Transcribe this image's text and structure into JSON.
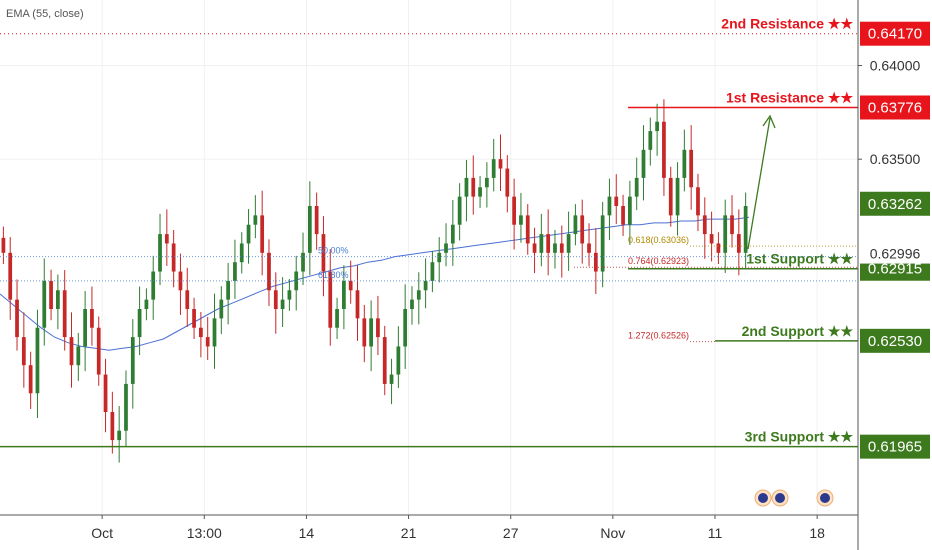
{
  "indicator": {
    "label": "EMA (55, close)"
  },
  "colors": {
    "resistance": "#e8141b",
    "support": "#3d7a1e",
    "candle_up": "#2e7d32",
    "candle_down": "#c62828",
    "ema": "#4a6fd4",
    "fib_blue": "#4a7fd4",
    "fib_gold": "#b08a00",
    "fib_red": "#c62828",
    "arrow": "#3d7a1e",
    "grid": "#f0f0f0"
  },
  "chart_data": {
    "type": "candlestick",
    "ylim": [
      0.616,
      0.6435
    ],
    "x_ticks": [
      {
        "label": "Oct",
        "t": 15
      },
      {
        "label": "13:00",
        "t": 30
      },
      {
        "label": "14",
        "t": 45
      },
      {
        "label": "21",
        "t": 60
      },
      {
        "label": "27",
        "t": 75
      },
      {
        "label": "Nov",
        "t": 90
      },
      {
        "label": "11",
        "t": 105
      },
      {
        "label": "18",
        "t": 120
      }
    ],
    "y_ticks": [
      {
        "label": "0.64000",
        "v": 0.64
      },
      {
        "label": "0.63500",
        "v": 0.635
      }
    ],
    "close_series": [
      0.63,
      0.6275,
      0.6255,
      0.624,
      0.6225,
      0.626,
      0.6285,
      0.627,
      0.628,
      0.6255,
      0.624,
      0.625,
      0.627,
      0.626,
      0.6235,
      0.6215,
      0.62,
      0.6205,
      0.623,
      0.6255,
      0.627,
      0.6275,
      0.629,
      0.631,
      0.6305,
      0.629,
      0.628,
      0.627,
      0.626,
      0.6255,
      0.625,
      0.6265,
      0.6275,
      0.6285,
      0.6295,
      0.6305,
      0.6315,
      0.632,
      0.63,
      0.628,
      0.627,
      0.6275,
      0.628,
      0.629,
      0.63,
      0.6325,
      0.631,
      0.629,
      0.626,
      0.627,
      0.6285,
      0.628,
      0.6265,
      0.625,
      0.6265,
      0.6255,
      0.623,
      0.6235,
      0.625,
      0.627,
      0.6275,
      0.628,
      0.6285,
      0.6295,
      0.63,
      0.6305,
      0.6315,
      0.633,
      0.634,
      0.633,
      0.6335,
      0.634,
      0.635,
      0.6345,
      0.633,
      0.6315,
      0.632,
      0.6305,
      0.63,
      0.631,
      0.63,
      0.6305,
      0.63,
      0.631,
      0.632,
      0.6305,
      0.63,
      0.629,
      0.632,
      0.633,
      0.6325,
      0.6315,
      0.633,
      0.634,
      0.6355,
      0.6365,
      0.637,
      0.634,
      0.632,
      0.634,
      0.6355,
      0.6335,
      0.632,
      0.631,
      0.6305,
      0.63,
      0.632,
      0.631,
      0.63,
      0.6325
    ],
    "ema_series": [
      0.6278,
      0.6272,
      0.6266,
      0.626,
      0.6255,
      0.6252,
      0.625,
      0.6249,
      0.6248,
      0.6249,
      0.625,
      0.6252,
      0.6254,
      0.6258,
      0.6262,
      0.6266,
      0.627,
      0.6273,
      0.6276,
      0.6279,
      0.6282,
      0.6284,
      0.6286,
      0.6288,
      0.629,
      0.6292,
      0.6293,
      0.6295,
      0.6296,
      0.6298,
      0.6299,
      0.63,
      0.6301,
      0.6302,
      0.6303,
      0.6304,
      0.6305,
      0.6306,
      0.6307,
      0.6308,
      0.6309,
      0.631,
      0.6311,
      0.6312,
      0.6313,
      0.6314,
      0.6315,
      0.6315,
      0.6316,
      0.6316,
      0.6317,
      0.6317,
      0.6318,
      0.6318,
      0.6318,
      0.6319
    ],
    "levels": [
      {
        "label": "2nd Resistance ★★",
        "value": 0.6417,
        "tag": "0.64170",
        "kind": "resistance",
        "line": "dotted-full"
      },
      {
        "label": "1st Resistance ★★",
        "value": 0.63776,
        "tag": "0.63776",
        "kind": "resistance",
        "line": "solid-right"
      },
      {
        "label": "1st Support ★★",
        "value": 0.62915,
        "tag": "0.62915",
        "kind": "support",
        "line": "solid-right"
      },
      {
        "label": "2nd Support ★★",
        "value": 0.6253,
        "tag": "0.62530",
        "kind": "support",
        "line": "solid-short"
      },
      {
        "label": "3rd Support ★★",
        "value": 0.61965,
        "tag": "0.61965",
        "kind": "support",
        "line": "solid-full"
      }
    ],
    "price_tags": [
      {
        "value": 0.63262,
        "tag": "0.63262",
        "kind": "support"
      },
      {
        "value": 0.62996,
        "tag": "0.62996",
        "kind": "plain"
      }
    ],
    "fib_labels": [
      {
        "label": "50.00%",
        "value": 0.6298,
        "color": "fib_blue"
      },
      {
        "label": "61.80%",
        "value": 0.6285,
        "color": "fib_blue"
      },
      {
        "label": "0.618(0.63036)",
        "value": 0.63036,
        "color": "fib_gold"
      },
      {
        "label": "0.764(0.62923)",
        "value": 0.62923,
        "color": "fib_red"
      },
      {
        "label": "1.272(0.62526)",
        "value": 0.62526,
        "color": "fib_red"
      }
    ]
  }
}
